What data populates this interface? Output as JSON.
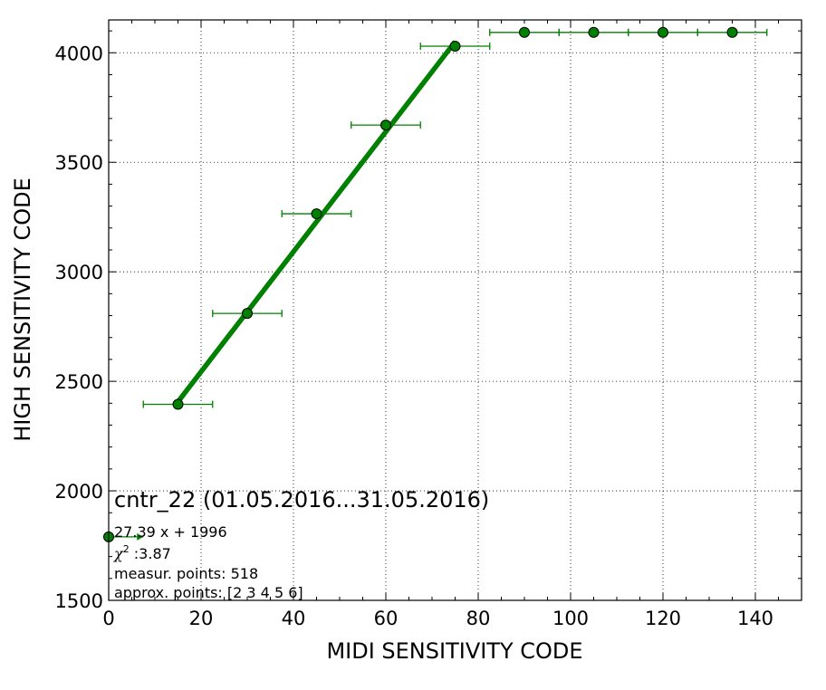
{
  "chart_data": {
    "type": "scatter",
    "xlabel": "MIDI SENSITIVITY CODE",
    "ylabel": "HIGH SENSITIVITY CODE",
    "xlim": [
      0,
      150
    ],
    "ylim": [
      1500,
      4150
    ],
    "xticks": [
      0,
      20,
      40,
      60,
      80,
      100,
      120,
      140
    ],
    "yticks": [
      1500,
      2000,
      2500,
      3000,
      3500,
      4000
    ],
    "grid": true,
    "colors": {
      "marker": "#008000",
      "fit_line": "#008000",
      "errorbar": "#008000",
      "edge": "#000000"
    },
    "points": [
      {
        "x": 0,
        "y": 1790,
        "xerr_low": 0,
        "xerr_high": 7.5
      },
      {
        "x": 15,
        "y": 2395,
        "xerr": 7.5
      },
      {
        "x": 30,
        "y": 2810,
        "xerr": 7.5
      },
      {
        "x": 45,
        "y": 3265,
        "xerr": 7.5
      },
      {
        "x": 60,
        "y": 3670,
        "xerr": 7.5
      },
      {
        "x": 75,
        "y": 4030,
        "xerr": 7.5
      },
      {
        "x": 90,
        "y": 4093,
        "xerr": 7.5
      },
      {
        "x": 105,
        "y": 4093,
        "xerr": 7.5
      },
      {
        "x": 120,
        "y": 4093,
        "xerr": 7.5
      },
      {
        "x": 135,
        "y": 4093,
        "xerr": 7.5
      }
    ],
    "fit": {
      "slope": 27.39,
      "intercept": 1996,
      "x_from": 15,
      "x_to": 75
    },
    "annotations": {
      "title": "cntr_22 (01.05.2016...31.05.2016)",
      "equation": "27.39 x + 1996",
      "chi_symbol": "χ",
      "chi_sup": "2",
      "chi_value": " :3.87",
      "measur_points": "measur. points: 518",
      "approx_points": "approx. points: [2 3 4 5 6]"
    }
  }
}
